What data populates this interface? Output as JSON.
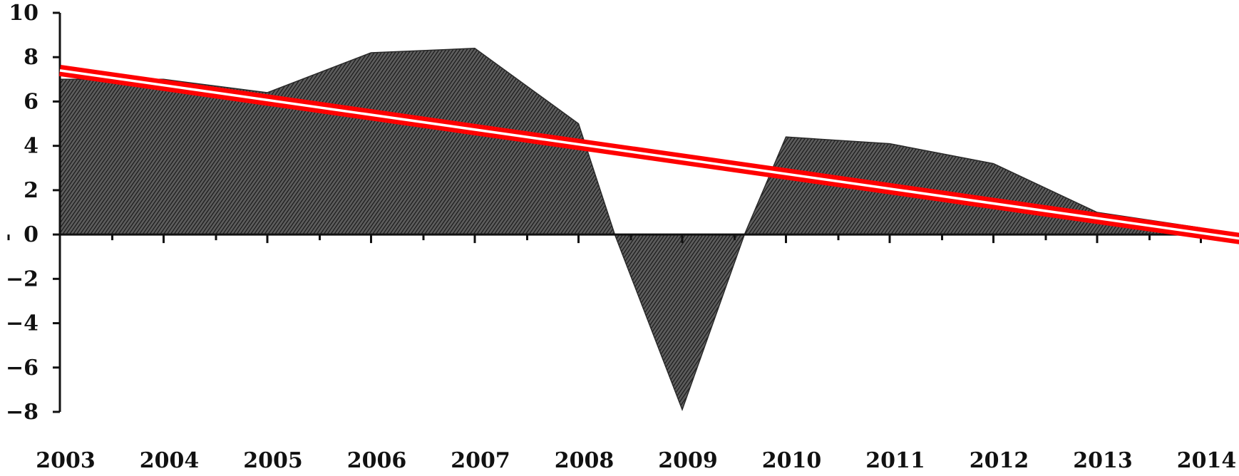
{
  "chart_data": {
    "type": "area",
    "title": "",
    "xlabel": "",
    "ylabel": "",
    "x_start": 2003,
    "x_end": 2014,
    "x_ticks": [
      "2003",
      "2004",
      "2005",
      "2006",
      "2007",
      "2008",
      "2009",
      "2010",
      "2011",
      "2012",
      "2013",
      "2014"
    ],
    "y_ticks": [
      "10",
      "8",
      "6",
      "4",
      "2",
      "0",
      "−2",
      "−4",
      "−6",
      "−8"
    ],
    "ylim": [
      -8,
      10
    ],
    "grid": false,
    "series": [
      {
        "x": [
          2003,
          2004,
          2005,
          2006,
          2007,
          2008,
          2008.35,
          2009,
          2009.6,
          2010,
          2011,
          2012,
          2013,
          2014
        ],
        "y": [
          7.0,
          7.0,
          6.4,
          8.2,
          8.4,
          5.0,
          0.0,
          -7.9,
          0.0,
          4.4,
          4.1,
          3.2,
          1.0,
          0.3
        ],
        "color": "#2a2a2a"
      }
    ],
    "trend_line": {
      "x": [
        2003,
        2015
      ],
      "y": [
        7.4,
        -0.6
      ],
      "color": "#ff0000"
    }
  }
}
